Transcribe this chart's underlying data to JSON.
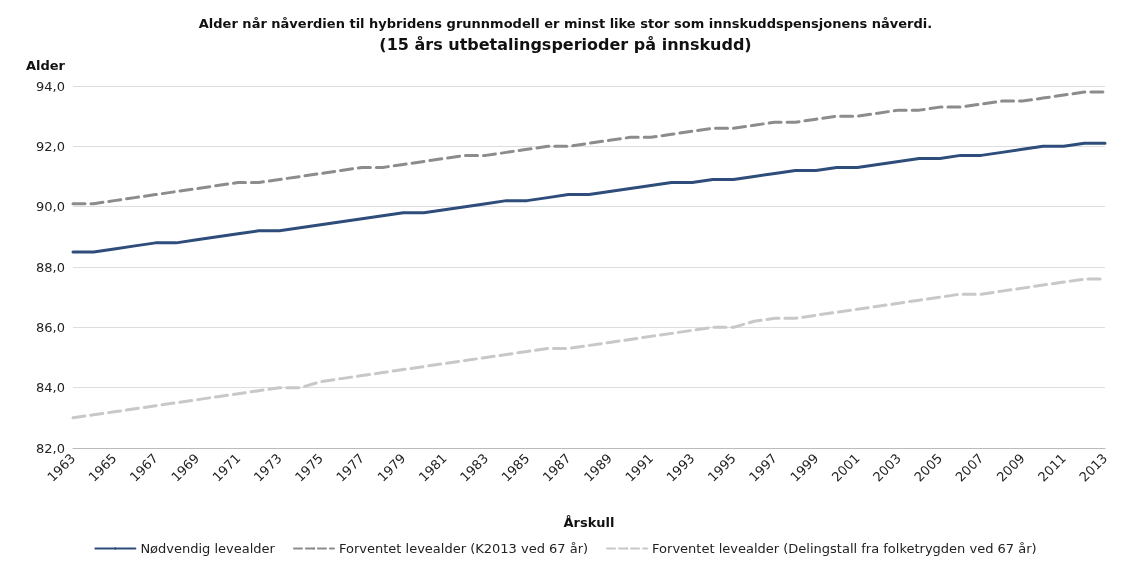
{
  "chart_data": {
    "type": "line",
    "title": "Alder når nåverdien til hybridens grunnmodell er minst like stor som innskuddspensjonens nåverdi.",
    "subtitle": "(15 års utbetalingsperioder på innskudd)",
    "xlabel": "Årskull",
    "ylabel": "Alder",
    "categories": [
      "1963",
      null,
      "1965",
      null,
      "1967",
      null,
      "1969",
      null,
      "1971",
      null,
      "1973",
      null,
      "1975",
      null,
      "1977",
      null,
      "1979",
      null,
      "1981",
      null,
      "1983",
      null,
      "1985",
      null,
      "1987",
      null,
      "1989",
      null,
      "1991",
      null,
      "1993",
      null,
      "1995",
      null,
      "1997",
      null,
      "1999",
      null,
      "2001",
      null,
      "2003",
      null,
      "2005",
      null,
      "2007",
      null,
      "2009",
      null,
      "2011",
      null,
      "2013"
    ],
    "series": [
      {
        "name": "Nødvendig levealder",
        "color": "#2e4d7b",
        "line_style": "solid",
        "values": [
          88.5,
          88.5,
          88.6,
          88.7,
          88.8,
          88.8,
          88.9,
          89.0,
          89.1,
          89.2,
          89.2,
          89.3,
          89.4,
          89.5,
          89.6,
          89.7,
          89.8,
          89.8,
          89.9,
          90.0,
          90.1,
          90.2,
          90.2,
          90.3,
          90.4,
          90.4,
          90.5,
          90.6,
          90.7,
          90.8,
          90.8,
          90.9,
          90.9,
          91.0,
          91.1,
          91.2,
          91.2,
          91.3,
          91.3,
          91.4,
          91.5,
          91.6,
          91.6,
          91.7,
          91.7,
          91.8,
          91.9,
          92.0,
          92.0,
          92.1,
          92.1
        ]
      },
      {
        "name": "Forventet levealder (K2013 ved 67 år)",
        "color": "#8c8c8c",
        "line_style": "dashed",
        "values": [
          90.1,
          90.1,
          90.2,
          90.3,
          90.4,
          90.5,
          90.6,
          90.7,
          90.8,
          90.8,
          90.9,
          91.0,
          91.1,
          91.2,
          91.3,
          91.3,
          91.4,
          91.5,
          91.6,
          91.7,
          91.7,
          91.8,
          91.9,
          92.0,
          92.0,
          92.1,
          92.2,
          92.3,
          92.3,
          92.4,
          92.5,
          92.6,
          92.6,
          92.7,
          92.8,
          92.8,
          92.9,
          93.0,
          93.0,
          93.1,
          93.2,
          93.2,
          93.3,
          93.3,
          93.4,
          93.5,
          93.5,
          93.6,
          93.7,
          93.8,
          93.8
        ]
      },
      {
        "name": "Forventet levealder (Delingstall fra folketrygden ved 67 år)",
        "color": "#c8c8c8",
        "line_style": "dashed",
        "values": [
          83.0,
          83.1,
          83.2,
          83.3,
          83.4,
          83.5,
          83.6,
          83.7,
          83.8,
          83.9,
          84.0,
          84.0,
          84.2,
          84.3,
          84.4,
          84.5,
          84.6,
          84.7,
          84.8,
          84.9,
          85.0,
          85.1,
          85.2,
          85.3,
          85.3,
          85.4,
          85.5,
          85.6,
          85.7,
          85.8,
          85.9,
          86.0,
          86.0,
          86.2,
          86.3,
          86.3,
          86.4,
          86.5,
          86.6,
          86.7,
          86.8,
          86.9,
          87.0,
          87.1,
          87.1,
          87.2,
          87.3,
          87.4,
          87.5,
          87.6,
          87.6
        ]
      }
    ],
    "ylim": [
      82,
      94
    ],
    "yticks": [
      {
        "value": 82,
        "label": "82,0"
      },
      {
        "value": 84,
        "label": "84,0"
      },
      {
        "value": 86,
        "label": "86,0"
      },
      {
        "value": 88,
        "label": "88,0"
      },
      {
        "value": 90,
        "label": "90,0"
      },
      {
        "value": 92,
        "label": "92,0"
      },
      {
        "value": 94,
        "label": "94,0"
      }
    ],
    "grid": "y",
    "legend": "bottom",
    "marker": "none"
  }
}
